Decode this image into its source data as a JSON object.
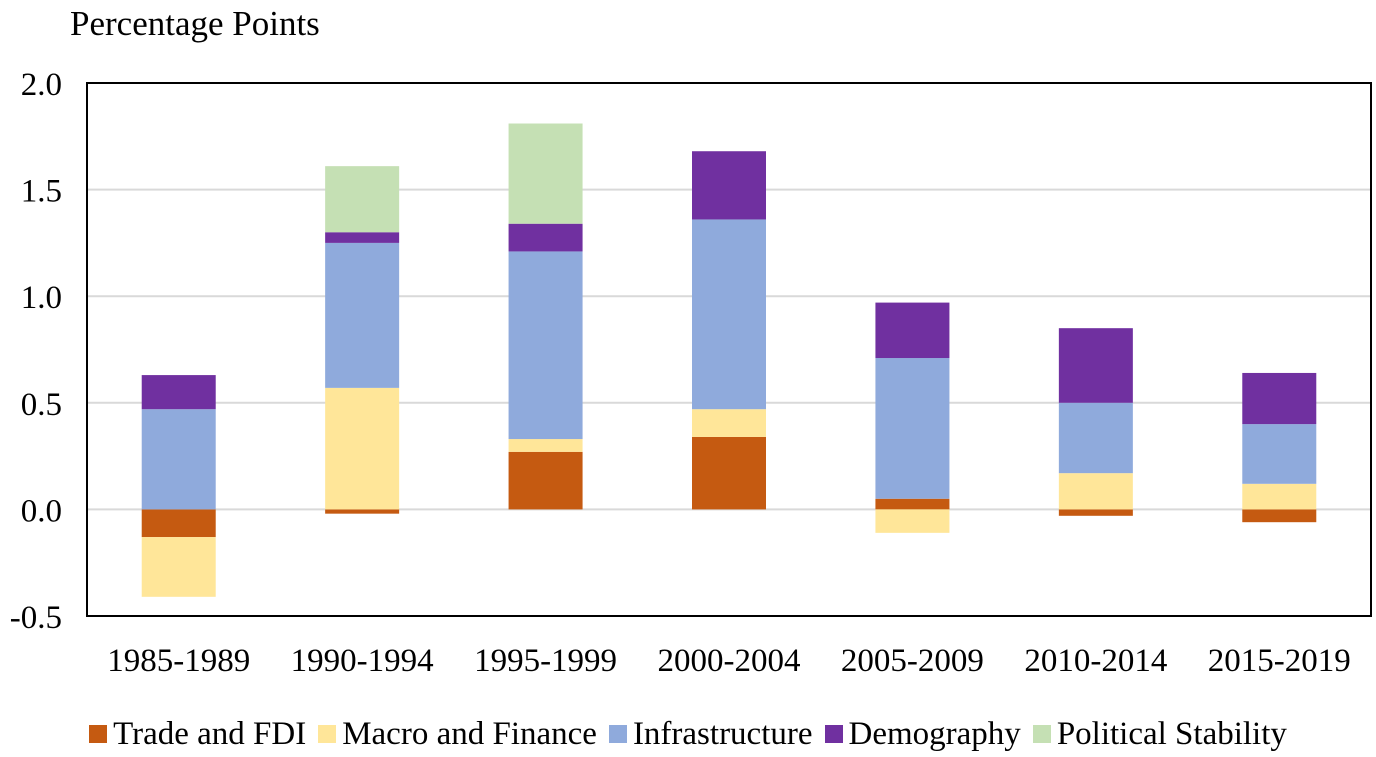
{
  "chart_data": {
    "type": "bar",
    "stacked": true,
    "title": "",
    "ylabel": "Percentage Points",
    "xlabel": "",
    "ylim": [
      -0.5,
      2.0
    ],
    "yticks": [
      "2.0",
      "1.5",
      "1.0",
      "0.5",
      "0.0",
      "-0.5"
    ],
    "ytick_values": [
      2.0,
      1.5,
      1.0,
      0.5,
      0.0,
      -0.5
    ],
    "grid": true,
    "legend_position": "bottom",
    "categories": [
      "1985-1989",
      "1990-1994",
      "1995-1999",
      "2000-2004",
      "2005-2009",
      "2010-2014",
      "2015-2019"
    ],
    "series": [
      {
        "name": "Trade and FDI",
        "color": "#c55a11",
        "values": [
          -0.13,
          -0.02,
          0.27,
          0.34,
          0.05,
          -0.03,
          -0.06
        ]
      },
      {
        "name": "Macro and Finance",
        "color": "#ffe699",
        "values": [
          -0.28,
          0.57,
          0.06,
          0.13,
          -0.11,
          0.17,
          0.12
        ]
      },
      {
        "name": "Infrastructure",
        "color": "#8faadc",
        "values": [
          0.47,
          0.68,
          0.88,
          0.89,
          0.66,
          0.33,
          0.28
        ]
      },
      {
        "name": "Demography",
        "color": "#7030a0",
        "values": [
          0.16,
          0.05,
          0.13,
          0.32,
          0.26,
          0.35,
          0.24
        ]
      },
      {
        "name": "Political Stability",
        "color": "#c5e0b4",
        "values": [
          0,
          0.31,
          0.47,
          0,
          0,
          0,
          0
        ]
      }
    ]
  }
}
